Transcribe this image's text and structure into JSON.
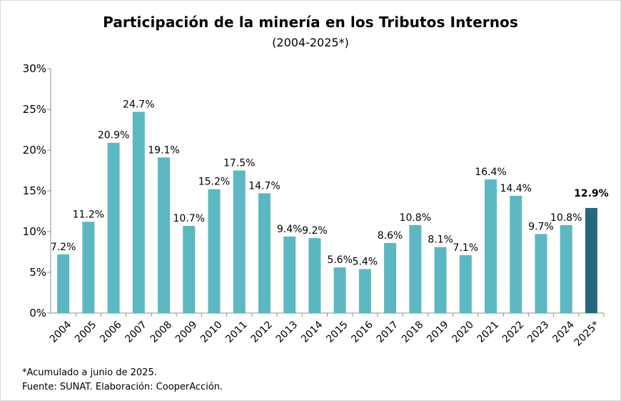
{
  "chart_data": {
    "type": "bar",
    "title": "Participación de la minería en los Tributos Internos",
    "subtitle": "(2004-2025*)",
    "categories": [
      "2004",
      "2005",
      "2006",
      "2007",
      "2008",
      "2009",
      "2010",
      "2011",
      "2012",
      "2013",
      "2014",
      "2015",
      "2016",
      "2017",
      "2018",
      "2019",
      "2020",
      "2021",
      "2022",
      "2023",
      "2024",
      "2025*"
    ],
    "values": [
      7.2,
      11.2,
      20.9,
      24.7,
      19.1,
      10.7,
      15.2,
      17.5,
      14.7,
      9.4,
      9.2,
      5.6,
      5.4,
      8.6,
      10.8,
      8.1,
      7.1,
      16.4,
      14.4,
      9.7,
      10.8,
      12.9
    ],
    "data_labels": [
      "7.2%",
      "11.2%",
      "20.9%",
      "24.7%",
      "19.1%",
      "10.7%",
      "15.2%",
      "17.5%",
      "14.7%",
      "9.4%",
      "9.2%",
      "5.6%",
      "5.4%",
      "8.6%",
      "10.8%",
      "8.1%",
      "7.1%",
      "16.4%",
      "14.4%",
      "9.7%",
      "10.8%",
      "12.9%"
    ],
    "y_ticks": [
      "0%",
      "5%",
      "10%",
      "15%",
      "20%",
      "25%",
      "30%"
    ],
    "y_tick_values": [
      0,
      5,
      10,
      15,
      20,
      25,
      30
    ],
    "ylim": [
      0,
      30
    ],
    "xlabel": "",
    "ylabel": "",
    "grid": false,
    "colors": {
      "bar": "#5bb8c2",
      "highlight": "#25677f"
    },
    "highlight_index": 21
  },
  "footnotes": {
    "note": "*Acumulado a junio de 2025.",
    "source": "Fuente: SUNAT. Elaboración: CooperAcción."
  }
}
